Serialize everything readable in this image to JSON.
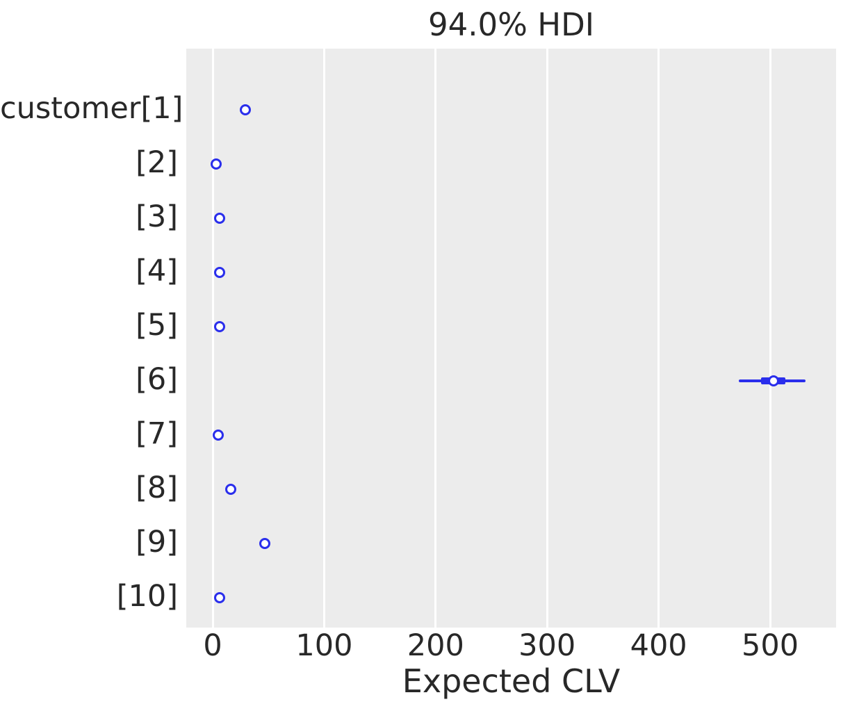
{
  "chart_data": {
    "type": "forest",
    "title": "94.0% HDI",
    "xlabel": "Expected CLV",
    "hdi_probability": "94.0%",
    "x_ticks": [
      0,
      100,
      200,
      300,
      400,
      500
    ],
    "xlim": [
      -23.7,
      559.2
    ],
    "grid": "vertical-only",
    "legend": "none",
    "rows": [
      {
        "label": "customer[1]",
        "point": 29,
        "hdi": null,
        "quartile": null
      },
      {
        "label": "[2]",
        "point": 3,
        "hdi": null,
        "quartile": null
      },
      {
        "label": "[3]",
        "point": 6,
        "hdi": null,
        "quartile": null
      },
      {
        "label": "[4]",
        "point": 6,
        "hdi": null,
        "quartile": null
      },
      {
        "label": "[5]",
        "point": 6,
        "hdi": null,
        "quartile": null
      },
      {
        "label": "[6]",
        "point": 503,
        "hdi": [
          472,
          532
        ],
        "quartile": [
          492,
          514
        ]
      },
      {
        "label": "[7]",
        "point": 5,
        "hdi": null,
        "quartile": null
      },
      {
        "label": "[8]",
        "point": 16,
        "hdi": null,
        "quartile": null
      },
      {
        "label": "[9]",
        "point": 47,
        "hdi": null,
        "quartile": null
      },
      {
        "label": "[10]",
        "point": 6,
        "hdi": null,
        "quartile": null
      }
    ],
    "colors": {
      "series": "#2a2eec",
      "plot_background": "#ececec",
      "gridline": "#ffffff",
      "text": "#282828",
      "figure_background": "#ffffff",
      "marker_face": "#ffffff"
    }
  }
}
